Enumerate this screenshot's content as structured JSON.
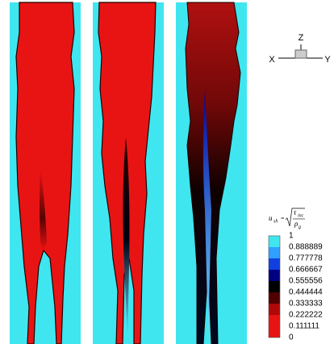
{
  "axes": {
    "z": "Z",
    "x": "X",
    "y": "Y"
  },
  "colorbar": {
    "label": {
      "u": "u",
      "sh": "sh",
      "eq": "=",
      "tau": "τ",
      "inc": "inc",
      "rho": "ρ",
      "g": "g"
    },
    "ticks": [
      "1",
      "0.888889",
      "0.777778",
      "0.666667",
      "0.555556",
      "0.444444",
      "0.333333",
      "0.222222",
      "0.111111",
      "0"
    ]
  }
}
